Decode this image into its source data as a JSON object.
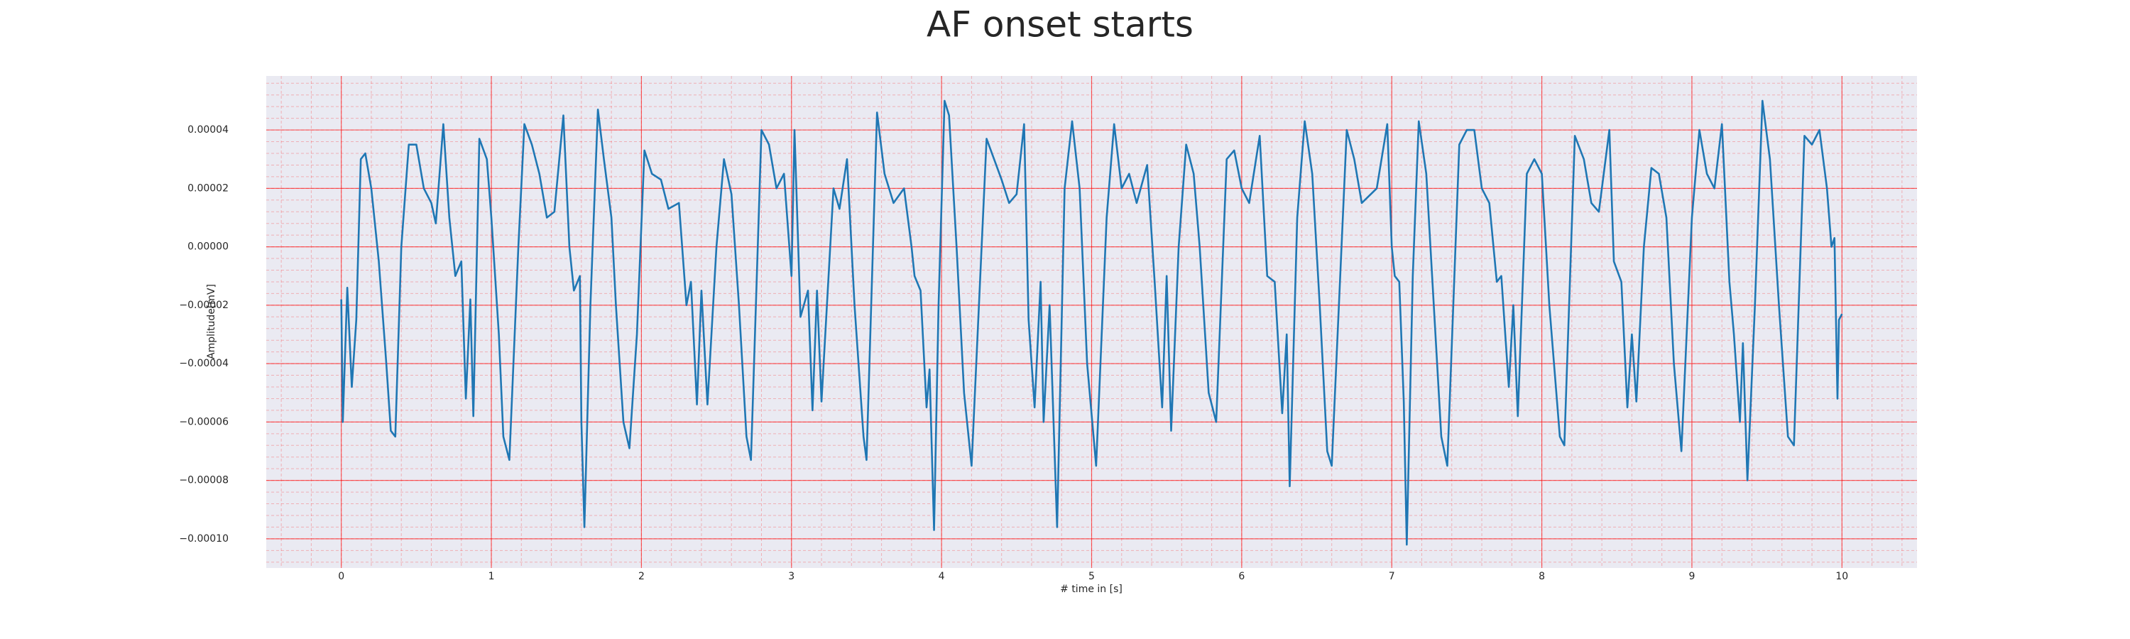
{
  "chart_data": {
    "type": "line",
    "title": "AF onset starts",
    "x_label": "# time in [s]",
    "y_label": "Amplitude[mV]",
    "xlim": [
      -0.5,
      10.5
    ],
    "xticks": [
      0,
      1,
      2,
      3,
      4,
      5,
      6,
      7,
      8,
      9,
      10
    ],
    "ylim": [
      -0.00011,
      5.85e-05
    ],
    "yticks": [
      {
        "value": -0.0001,
        "label": "−0.00010"
      },
      {
        "value": -8e-05,
        "label": "−0.00008"
      },
      {
        "value": -6e-05,
        "label": "−0.00006"
      },
      {
        "value": -4e-05,
        "label": "−0.00004"
      },
      {
        "value": -2e-05,
        "label": "−0.00002"
      },
      {
        "value": 0,
        "label": "0.00000"
      },
      {
        "value": 2e-05,
        "label": "0.00002"
      },
      {
        "value": 4e-05,
        "label": "0.00004"
      }
    ],
    "grid": true,
    "grid_color": "#ff0000",
    "background": "#eaeaf2",
    "series": [
      {
        "color": "#1f77b4",
        "x": [
          0,
          0.01,
          0.04,
          0.07,
          0.1,
          0.13,
          0.16,
          0.2,
          0.25,
          0.3,
          0.33,
          0.36,
          0.4,
          0.45,
          0.5,
          0.55,
          0.6,
          0.63,
          0.68,
          0.72,
          0.76,
          0.8,
          0.83,
          0.86,
          0.88,
          0.92,
          0.97,
          1.0,
          1.05,
          1.08,
          1.12,
          1.18,
          1.22,
          1.27,
          1.32,
          1.37,
          1.42,
          1.48,
          1.52,
          1.55,
          1.59,
          1.6,
          1.62,
          1.66,
          1.71,
          1.75,
          1.8,
          1.83,
          1.88,
          1.92,
          1.97,
          2.02,
          2.07,
          2.13,
          2.18,
          2.25,
          2.3,
          2.33,
          2.37,
          2.4,
          2.44,
          2.5,
          2.55,
          2.6,
          2.65,
          2.7,
          2.73,
          2.8,
          2.85,
          2.9,
          2.95,
          3.0,
          3.02,
          3.06,
          3.11,
          3.14,
          3.17,
          3.2,
          3.28,
          3.32,
          3.37,
          3.42,
          3.48,
          3.5,
          3.57,
          3.62,
          3.68,
          3.75,
          3.8,
          3.82,
          3.86,
          3.9,
          3.92,
          3.95,
          3.98,
          4.02,
          4.05,
          4.1,
          4.15,
          4.2,
          4.3,
          4.35,
          4.4,
          4.45,
          4.5,
          4.55,
          4.58,
          4.62,
          4.66,
          4.68,
          4.72,
          4.77,
          4.82,
          4.87,
          4.92,
          4.97,
          5.03,
          5.1,
          5.15,
          5.2,
          5.25,
          5.3,
          5.37,
          5.42,
          5.47,
          5.5,
          5.53,
          5.58,
          5.63,
          5.68,
          5.72,
          5.78,
          5.83,
          5.9,
          5.95,
          6.0,
          6.05,
          6.12,
          6.17,
          6.22,
          6.27,
          6.3,
          6.32,
          6.37,
          6.42,
          6.47,
          6.52,
          6.57,
          6.6,
          6.7,
          6.75,
          6.8,
          6.9,
          6.97,
          7.0,
          7.02,
          7.05,
          7.08,
          7.1,
          7.14,
          7.18,
          7.23,
          7.28,
          7.33,
          7.37,
          7.45,
          7.5,
          7.55,
          7.6,
          7.65,
          7.7,
          7.73,
          7.78,
          7.81,
          7.84,
          7.9,
          7.95,
          8.0,
          8.05,
          8.12,
          8.15,
          8.22,
          8.28,
          8.33,
          8.38,
          8.45,
          8.48,
          8.53,
          8.57,
          8.6,
          8.63,
          8.68,
          8.73,
          8.78,
          8.83,
          8.88,
          8.93,
          9.0,
          9.05,
          9.1,
          9.15,
          9.2,
          9.25,
          9.28,
          9.32,
          9.34,
          9.37,
          9.42,
          9.47,
          9.52,
          9.58,
          9.64,
          9.68,
          9.75,
          9.8,
          9.85,
          9.9,
          9.93,
          9.95,
          9.97,
          9.98,
          10.0
        ],
        "values": [
          -1.8e-05,
          -6e-05,
          -1.4e-05,
          -4.8e-05,
          -2.5e-05,
          3e-05,
          3.2e-05,
          2e-05,
          -5e-06,
          -4e-05,
          -6.3e-05,
          -6.5e-05,
          0,
          3.5e-05,
          3.5e-05,
          2e-05,
          1.5e-05,
          8e-06,
          4.2e-05,
          1e-05,
          -1e-05,
          -5e-06,
          -5.2e-05,
          -1.8e-05,
          -5.8e-05,
          3.7e-05,
          3e-05,
          1e-05,
          -3e-05,
          -6.5e-05,
          -7.3e-05,
          0,
          4.2e-05,
          3.5e-05,
          2.5e-05,
          1e-05,
          1.2e-05,
          4.5e-05,
          0,
          -1.5e-05,
          -1e-05,
          -6e-05,
          -9.6e-05,
          -2e-05,
          4.7e-05,
          3e-05,
          1e-05,
          -2e-05,
          -6e-05,
          -6.9e-05,
          -3e-05,
          3.3e-05,
          2.5e-05,
          2.3e-05,
          1.3e-05,
          1.5e-05,
          -2e-05,
          -1.2e-05,
          -5.4e-05,
          -1.5e-05,
          -5.4e-05,
          0,
          3e-05,
          1.8e-05,
          -2e-05,
          -6.5e-05,
          -7.3e-05,
          4e-05,
          3.5e-05,
          2e-05,
          2.5e-05,
          -1e-05,
          4e-05,
          -2.4e-05,
          -1.5e-05,
          -5.6e-05,
          -1.5e-05,
          -5.3e-05,
          2e-05,
          1.3e-05,
          3e-05,
          -2e-05,
          -6.5e-05,
          -7.3e-05,
          4.6e-05,
          2.5e-05,
          1.5e-05,
          2e-05,
          0,
          -1e-05,
          -1.5e-05,
          -5.5e-05,
          -4.2e-05,
          -9.7e-05,
          -2e-05,
          5e-05,
          4.5e-05,
          0,
          -5e-05,
          -7.5e-05,
          3.7e-05,
          3e-05,
          2.3e-05,
          1.5e-05,
          1.8e-05,
          4.2e-05,
          -2.5e-05,
          -5.5e-05,
          -1.2e-05,
          -6e-05,
          -2e-05,
          -9.6e-05,
          2e-05,
          4.3e-05,
          2e-05,
          -4e-05,
          -7.5e-05,
          1e-05,
          4.2e-05,
          2e-05,
          2.5e-05,
          1.5e-05,
          2.8e-05,
          -1.2e-05,
          -5.5e-05,
          -1e-05,
          -6.3e-05,
          0,
          3.5e-05,
          2.5e-05,
          0,
          -5e-05,
          -6e-05,
          3e-05,
          3.3e-05,
          2e-05,
          1.5e-05,
          3.8e-05,
          -1e-05,
          -1.2e-05,
          -5.7e-05,
          -3e-05,
          -8.2e-05,
          1e-05,
          4.3e-05,
          2.5e-05,
          -2e-05,
          -7e-05,
          -7.5e-05,
          4e-05,
          3e-05,
          1.5e-05,
          2e-05,
          4.2e-05,
          0,
          -1e-05,
          -1.2e-05,
          -5.3e-05,
          -0.000102,
          -1e-05,
          4.3e-05,
          2.5e-05,
          -2e-05,
          -6.5e-05,
          -7.5e-05,
          3.5e-05,
          4e-05,
          4e-05,
          2e-05,
          1.5e-05,
          -1.2e-05,
          -1e-05,
          -4.8e-05,
          -2e-05,
          -5.8e-05,
          2.5e-05,
          3e-05,
          2.5e-05,
          -2e-05,
          -6.5e-05,
          -6.8e-05,
          3.8e-05,
          3e-05,
          1.5e-05,
          1.2e-05,
          4e-05,
          -5e-06,
          -1.2e-05,
          -5.5e-05,
          -3e-05,
          -5.3e-05,
          0,
          2.7e-05,
          2.5e-05,
          1e-05,
          -4e-05,
          -7e-05,
          1e-05,
          4e-05,
          2.5e-05,
          2e-05,
          4.2e-05,
          -1.2e-05,
          -3e-05,
          -6e-05,
          -3.3e-05,
          -8e-05,
          -2e-05,
          5e-05,
          3e-05,
          -2e-05,
          -6.5e-05,
          -6.8e-05,
          3.8e-05,
          3.5e-05,
          4e-05,
          2e-05,
          0,
          3e-06,
          -5.2e-05,
          -2.5e-05,
          -2.3e-05
        ]
      }
    ]
  }
}
